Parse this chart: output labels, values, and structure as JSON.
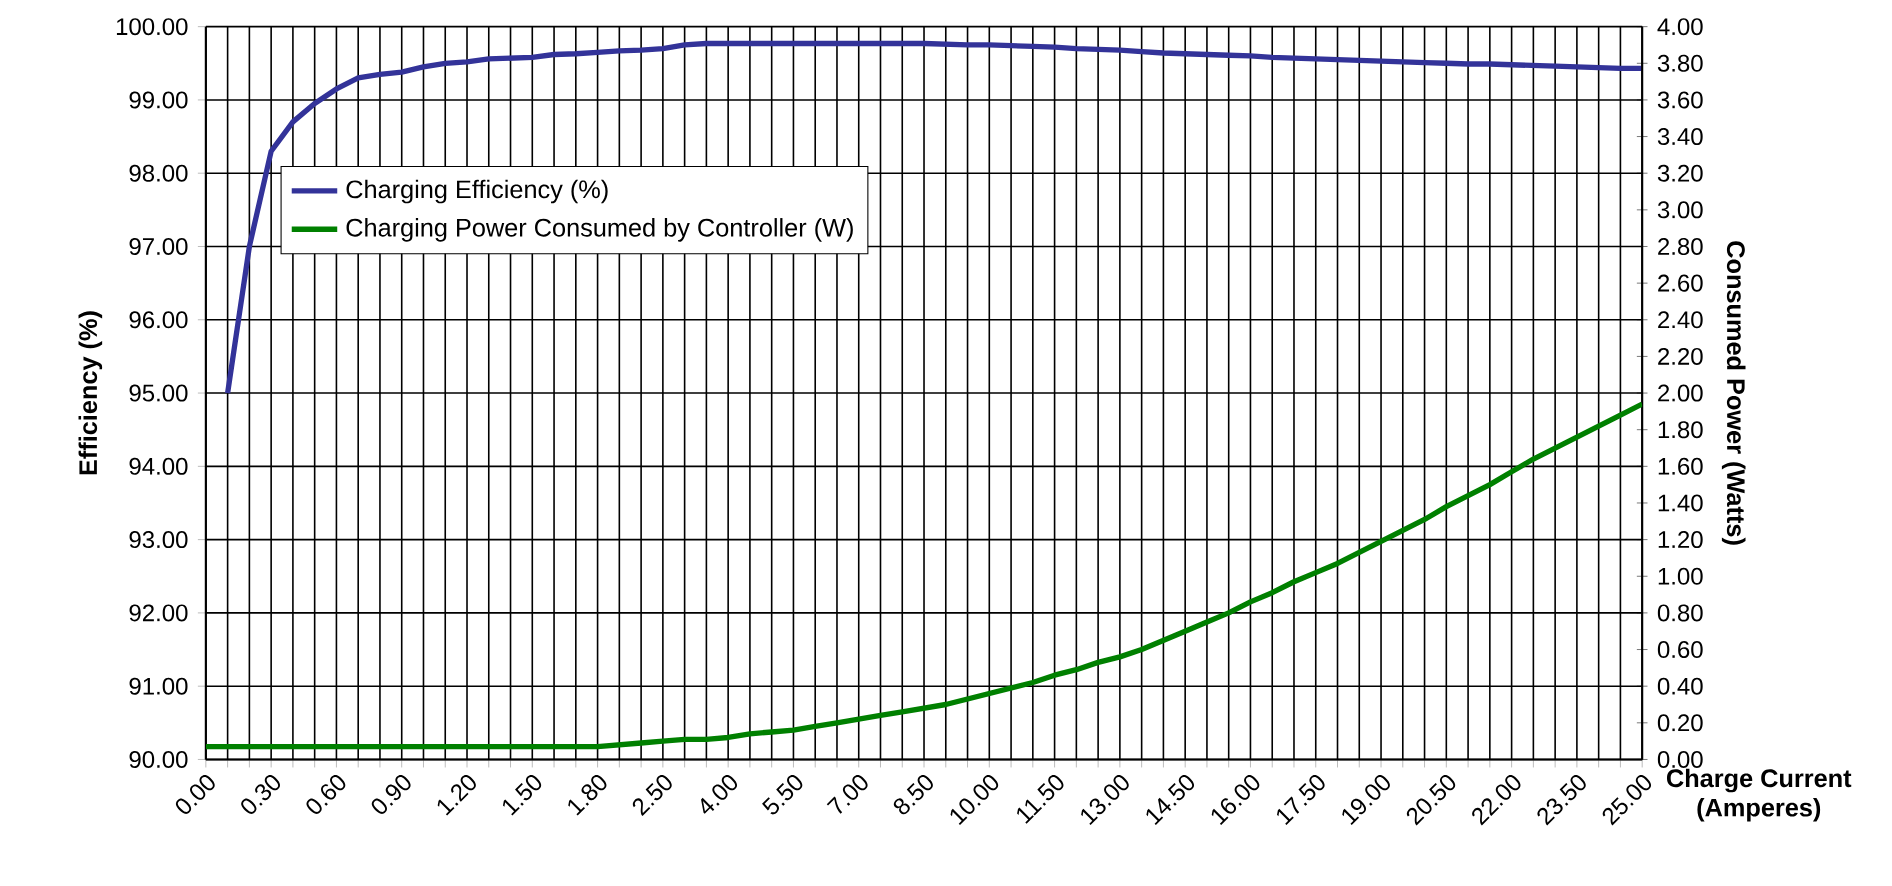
{
  "chart_data": {
    "type": "line",
    "xlabel": "Charge Current\n(Amperes)",
    "ylabel": "Efficiency (%)",
    "y2label": "Consumed Power (Watts)",
    "categories": [
      "0.00",
      null,
      null,
      "0.30",
      null,
      null,
      "0.60",
      null,
      null,
      "0.90",
      null,
      null,
      "1.20",
      null,
      null,
      "1.50",
      null,
      null,
      "1.80",
      null,
      null,
      "2.50",
      null,
      null,
      "4.00",
      null,
      null,
      "5.50",
      null,
      null,
      "7.00",
      null,
      null,
      "8.50",
      null,
      null,
      "10.00",
      null,
      null,
      "11.50",
      null,
      null,
      "13.00",
      null,
      null,
      "14.50",
      null,
      null,
      "16.00",
      null,
      null,
      "17.50",
      null,
      null,
      "19.00",
      null,
      null,
      "20.50",
      null,
      null,
      "22.00",
      null,
      null,
      "23.50",
      null,
      null,
      "25.00"
    ],
    "series": [
      {
        "name": "Charging Efficiency (%)",
        "color": "#333399",
        "values": [
          null,
          95.0,
          97.0,
          98.3,
          98.7,
          98.95,
          99.15,
          99.3,
          99.35,
          99.38,
          99.45,
          99.5,
          99.52,
          99.56,
          99.57,
          99.58,
          99.62,
          99.63,
          99.65,
          99.67,
          99.68,
          99.7,
          99.75,
          99.77,
          99.77,
          99.77,
          99.77,
          99.77,
          99.77,
          99.77,
          99.77,
          99.77,
          99.77,
          99.77,
          99.76,
          99.75,
          99.75,
          99.74,
          99.73,
          99.72,
          99.7,
          99.69,
          99.68,
          99.66,
          99.64,
          99.63,
          99.62,
          99.61,
          99.6,
          99.58,
          99.57,
          99.56,
          99.55,
          99.54,
          99.53,
          99.52,
          99.51,
          99.5,
          99.49,
          99.49,
          99.48,
          99.47,
          99.46,
          99.45,
          99.44,
          99.43,
          99.43
        ]
      },
      {
        "name": "Charging Power Consumed by Controller (W)",
        "color": "#008000",
        "axis": "y2",
        "values": [
          0.07,
          0.07,
          0.07,
          0.07,
          0.07,
          0.07,
          0.07,
          0.07,
          0.07,
          0.07,
          0.07,
          0.07,
          0.07,
          0.07,
          0.07,
          0.07,
          0.07,
          0.07,
          0.07,
          0.08,
          0.09,
          0.1,
          0.11,
          0.11,
          0.12,
          0.14,
          0.15,
          0.16,
          0.18,
          0.2,
          0.22,
          0.24,
          0.26,
          0.28,
          0.3,
          0.33,
          0.36,
          0.39,
          0.42,
          0.46,
          0.49,
          0.53,
          0.56,
          0.6,
          0.65,
          0.7,
          0.75,
          0.8,
          0.86,
          0.91,
          0.97,
          1.02,
          1.07,
          1.13,
          1.19,
          1.25,
          1.31,
          1.38,
          1.44,
          1.5,
          1.57,
          1.64,
          1.7,
          1.76,
          1.82,
          1.88,
          1.94
        ]
      }
    ],
    "ylim": [
      90,
      100
    ],
    "yticks": [
      {
        "value": 90,
        "label": "90.00"
      },
      {
        "value": 91,
        "label": "91.00"
      },
      {
        "value": 92,
        "label": "92.00"
      },
      {
        "value": 93,
        "label": "93.00"
      },
      {
        "value": 94,
        "label": "94.00"
      },
      {
        "value": 95,
        "label": "95.00"
      },
      {
        "value": 96,
        "label": "96.00"
      },
      {
        "value": 97,
        "label": "97.00"
      },
      {
        "value": 98,
        "label": "98.00"
      },
      {
        "value": 99,
        "label": "99.00"
      },
      {
        "value": 100,
        "label": "100.00"
      }
    ],
    "y2lim": [
      0,
      4
    ],
    "y2ticks": [
      {
        "value": 0,
        "label": "0.00"
      },
      {
        "value": 0.2,
        "label": "0.20"
      },
      {
        "value": 0.4,
        "label": "0.40"
      },
      {
        "value": 0.6,
        "label": "0.60"
      },
      {
        "value": 0.8,
        "label": "0.80"
      },
      {
        "value": 1.0,
        "label": "1.00"
      },
      {
        "value": 1.2,
        "label": "1.20"
      },
      {
        "value": 1.4,
        "label": "1.40"
      },
      {
        "value": 1.6,
        "label": "1.60"
      },
      {
        "value": 1.8,
        "label": "1.80"
      },
      {
        "value": 2.0,
        "label": "2.00"
      },
      {
        "value": 2.2,
        "label": "2.20"
      },
      {
        "value": 2.4,
        "label": "2.40"
      },
      {
        "value": 2.6,
        "label": "2.60"
      },
      {
        "value": 2.8,
        "label": "2.80"
      },
      {
        "value": 3.0,
        "label": "3.00"
      },
      {
        "value": 3.2,
        "label": "3.20"
      },
      {
        "value": 3.4,
        "label": "3.40"
      },
      {
        "value": 3.6,
        "label": "3.60"
      },
      {
        "value": 3.8,
        "label": "3.80"
      },
      {
        "value": 4.0,
        "label": "4.00"
      }
    ],
    "grid": true,
    "legend": "top left"
  }
}
